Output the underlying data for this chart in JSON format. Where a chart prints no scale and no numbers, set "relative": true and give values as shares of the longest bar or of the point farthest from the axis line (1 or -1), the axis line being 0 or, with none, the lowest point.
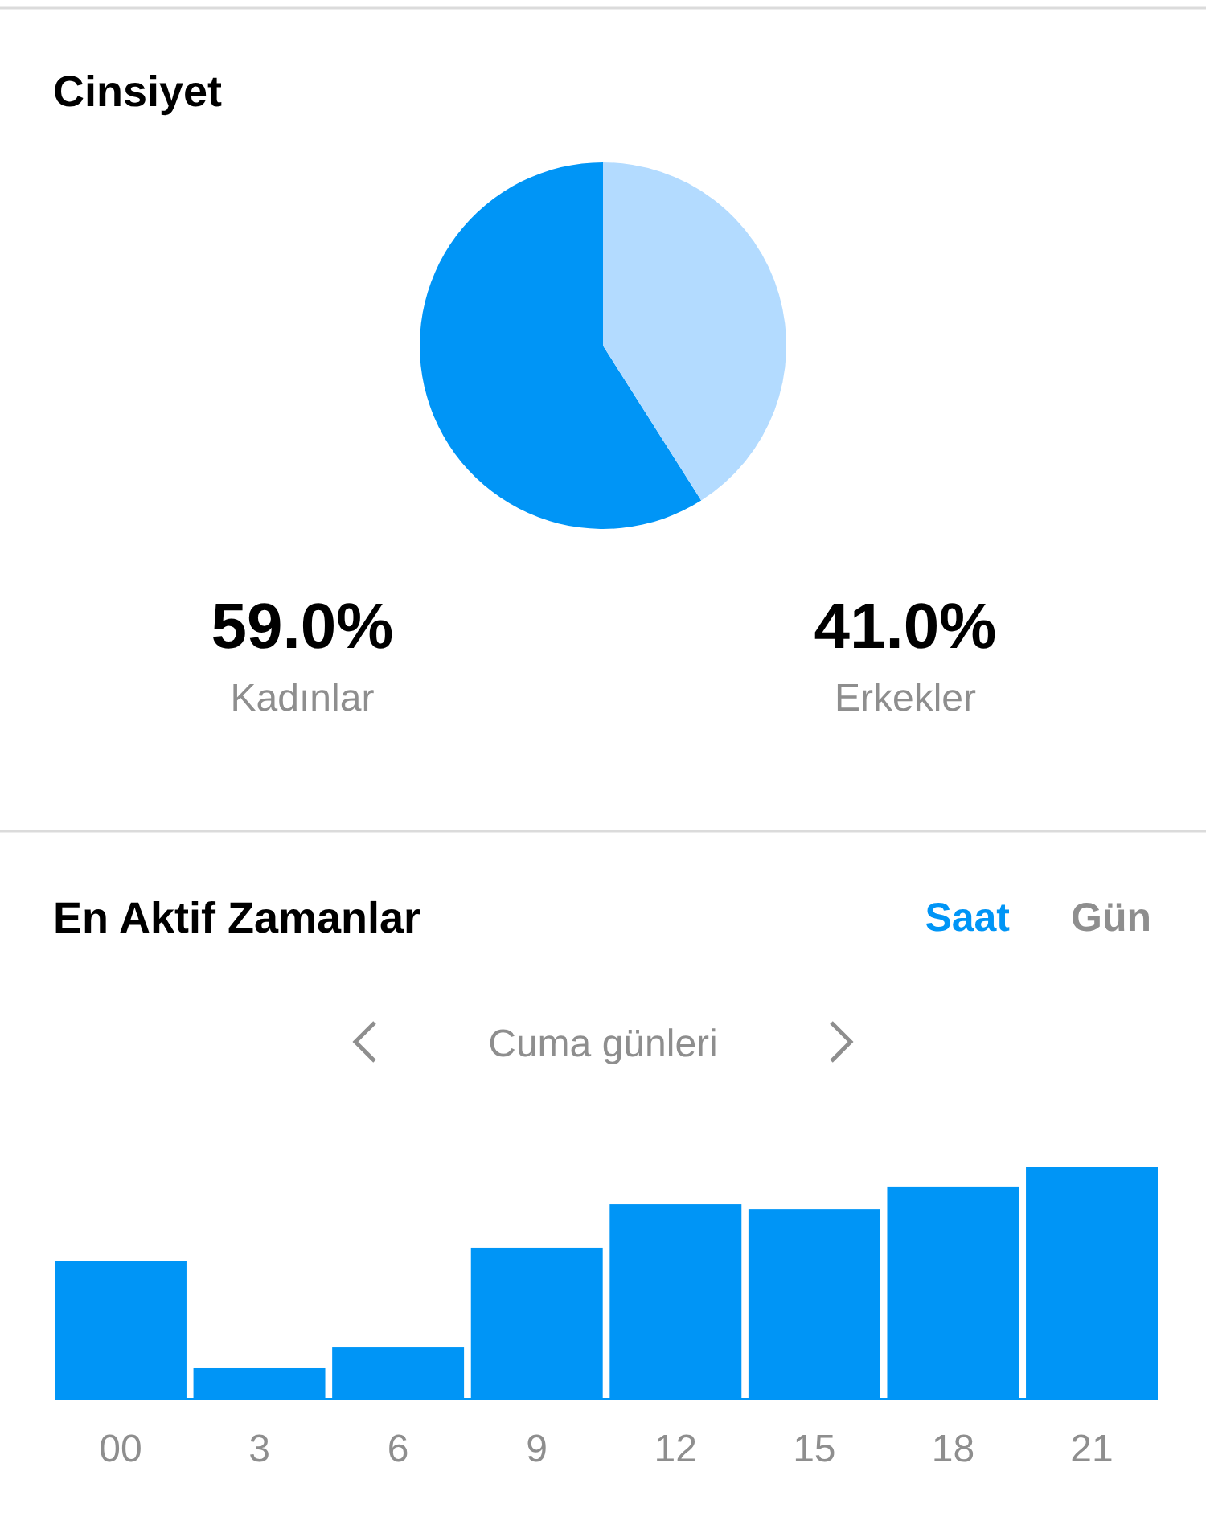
{
  "chart_data": [
    {
      "type": "pie",
      "title": "Cinsiyet",
      "categories": [
        "Kadınlar",
        "Erkekler"
      ],
      "values": [
        59.0,
        41.0
      ],
      "colors": [
        "#0095f6",
        "#b3dbff"
      ],
      "value_labels": [
        "59.0%",
        "41.0%"
      ]
    },
    {
      "type": "bar",
      "title": "En Aktif Zamanlar",
      "annotations": [
        "Saat",
        "Gün",
        "Cuma günleri"
      ],
      "categories": [
        "00",
        "3",
        "6",
        "9",
        "12",
        "15",
        "18",
        "21"
      ],
      "relative": true,
      "color": "#0095f6",
      "values": [
        0.597,
        0.132,
        0.222,
        0.653,
        0.84,
        0.819,
        0.917,
        1
      ]
    }
  ]
}
